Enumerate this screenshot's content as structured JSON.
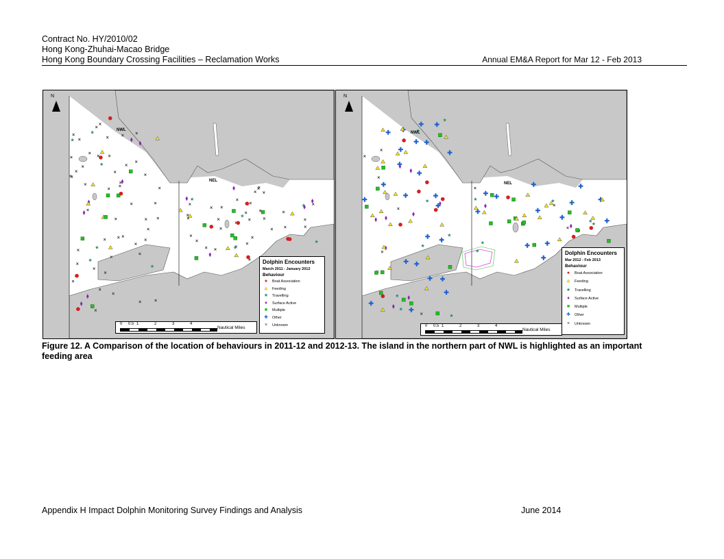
{
  "header": {
    "line1": "Contract No. HY/2010/02",
    "line2": "Hong Kong-Zhuhai-Macao Bridge",
    "line3": "Hong Kong Boundary Crossing Facilities – Reclamation Works",
    "report": "Annual EM&A Report for Mar 12 - Feb 2013"
  },
  "maps": [
    {
      "north": "N",
      "label_nwl": "NWL",
      "label_nel": "NEL",
      "legend_title": "Dolphin Encounters",
      "period": "March 2011 - January 2012",
      "behaviour_title": "Behaviour",
      "items": [
        "Boat Association",
        "Feeding",
        "Travelling",
        "Surface Active",
        "Multiple",
        "Other",
        "Unknown"
      ],
      "scale_ticks": [
        "0",
        "0.5",
        "1",
        "2",
        "3",
        "4"
      ],
      "scale_unit": "Nautical Miles"
    },
    {
      "north": "N",
      "label_nwl": "NWL",
      "label_nel": "NEL",
      "legend_title": "Dolphin Encounters",
      "period": "Mar 2012 - Feb 2013",
      "behaviour_title": "Behaviour",
      "items": [
        "Boat Association",
        "Feeding",
        "Travelling",
        "Surface Active",
        "Multiple",
        "Other",
        "Unknown"
      ],
      "scale_ticks": [
        "0",
        "0.5",
        "1",
        "2",
        "3",
        "4"
      ],
      "scale_unit": "Nautical Miles"
    }
  ],
  "symbol_colors": {
    "boat_association": "#d42020",
    "feeding": "#f0e020",
    "travelling": "#2a8a6a",
    "surface_active": "#8a22b0",
    "multiple": "#22c022",
    "other": "#2060d0",
    "unknown": "#333333"
  },
  "caption": "Figure 12. A Comparison of the location of behaviours in 2011-12 and 2012-13.  The island in the northern part of NWL is highlighted as an important feeding area",
  "footer": {
    "left": "Appendix H   Impact Dolphin Monitoring Survey Findings and Analysis",
    "right": "June 2014"
  }
}
